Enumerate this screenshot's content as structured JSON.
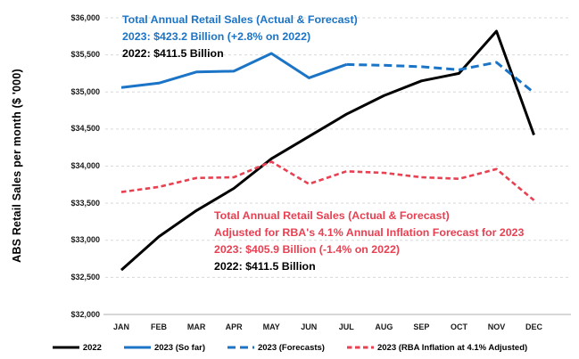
{
  "chart_data": {
    "type": "line",
    "title": "",
    "ylabel": "ABS Retail Sales per month ($ '000)",
    "xlabel": "",
    "ylim": [
      32000,
      36000
    ],
    "grid": "horizontal-dashed",
    "legend_position": "bottom",
    "categories": [
      "JAN",
      "FEB",
      "MAR",
      "APR",
      "MAY",
      "JUN",
      "JUL",
      "AUG",
      "SEP",
      "OCT",
      "NOV",
      "DEC"
    ],
    "y_ticks": [
      {
        "value": 36000,
        "label": "$36,000"
      },
      {
        "value": 35500,
        "label": "$35,500"
      },
      {
        "value": 35000,
        "label": "$35,000"
      },
      {
        "value": 34500,
        "label": "$34,500"
      },
      {
        "value": 34000,
        "label": "$34,000"
      },
      {
        "value": 33500,
        "label": "$33,500"
      },
      {
        "value": 33000,
        "label": "$33,000"
      },
      {
        "value": 32500,
        "label": "$32,500"
      },
      {
        "value": 32000,
        "label": "$32,000"
      }
    ],
    "series": [
      {
        "name": "2022",
        "color": "#000000",
        "dash": "solid",
        "width": 3,
        "start_index": 0,
        "values": [
          32600,
          33050,
          33400,
          33700,
          34100,
          34400,
          34700,
          34950,
          35150,
          35250,
          35820,
          34420
        ]
      },
      {
        "name": "2023 (So far)",
        "color": "#1B74C5",
        "dash": "solid",
        "width": 3,
        "start_index": 0,
        "values": [
          35060,
          35120,
          35270,
          35280,
          35520,
          35190,
          35370
        ]
      },
      {
        "name": "2023 (Forecasts)",
        "color": "#1B74C5",
        "dash": "dash-long",
        "width": 3,
        "start_index": 6,
        "values": [
          35370,
          35360,
          35340,
          35300,
          35400,
          34990
        ]
      },
      {
        "name": "2023 (RBA Inflation at 4.1% Adjusted)",
        "color": "#E94052",
        "dash": "dash",
        "width": 2.6,
        "start_index": 0,
        "values": [
          33650,
          33720,
          33840,
          33850,
          34060,
          33760,
          33930,
          33910,
          33850,
          33830,
          33960,
          33540
        ]
      }
    ],
    "annotations": [
      {
        "id": "blue-note",
        "lines": [
          {
            "text": "Total Annual Retail Sales (Actual & Forecast)",
            "color": "#1B74C5"
          },
          {
            "text": "2023: $423.2 Billion (+2.8% on 2022)",
            "color": "#1B74C5"
          },
          {
            "text": "2022: $411.5 Billion",
            "color": "#000000"
          }
        ]
      },
      {
        "id": "red-note",
        "lines": [
          {
            "text": "Total Annual Retail Sales (Actual & Forecast)",
            "color": "#E94052"
          },
          {
            "text": "Adjusted for RBA's 4.1% Annual Inflation Forecast for 2023",
            "color": "#E94052"
          },
          {
            "text": "2023: $405.9 Billion (-1.4% on 2022)",
            "color": "#E94052"
          },
          {
            "text": "2022: $411.5 Billion",
            "color": "#000000"
          }
        ]
      }
    ],
    "legend": [
      {
        "label": "2022",
        "color": "#000000",
        "dash": "solid"
      },
      {
        "label": "2023 (So far)",
        "color": "#1B74C5",
        "dash": "solid"
      },
      {
        "label": "2023 (Forecasts)",
        "color": "#1B74C5",
        "dash": "dash-long"
      },
      {
        "label": "2023 (RBA Inflation at 4.1% Adjusted)",
        "color": "#E94052",
        "dash": "dash"
      }
    ],
    "colors": {
      "gridline": "#D9D9D9",
      "axis_line": "#BFBFBF",
      "tick_text": "#1A1A1A"
    }
  }
}
